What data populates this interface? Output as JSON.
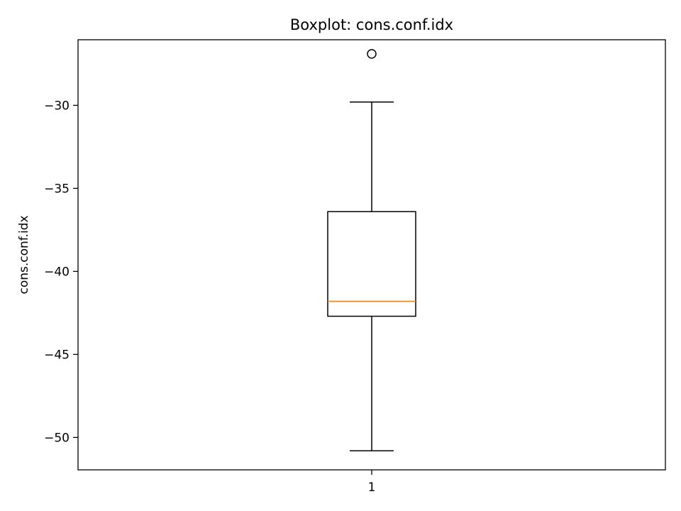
{
  "chart_data": {
    "type": "boxplot",
    "title": "Boxplot: cons.conf.idx",
    "xlabel": "",
    "ylabel": "cons.conf.idx",
    "categories": [
      "1"
    ],
    "ylim": [
      -51.95,
      -26.05
    ],
    "yticks": [
      -30,
      -35,
      -40,
      -45,
      -50
    ],
    "ytick_labels": [
      "−30",
      "−35",
      "−40",
      "−45",
      "−50"
    ],
    "boxes": [
      {
        "whisker_low": -50.8,
        "q1": -42.7,
        "median": -41.8,
        "q3": -36.4,
        "whisker_high": -29.8,
        "outliers": [
          -26.9
        ]
      }
    ],
    "grid": false,
    "legend": "none"
  },
  "colors": {
    "box": "#000000",
    "median": "#ff7f0e",
    "axes": "#000000",
    "background": "#ffffff"
  }
}
